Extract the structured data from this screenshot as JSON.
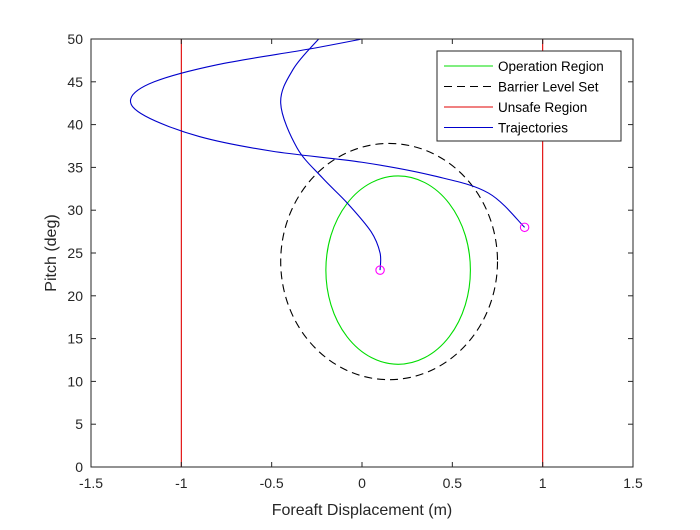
{
  "chart_data": {
    "type": "line",
    "xlabel": "Foreaft Displacement (m)",
    "ylabel": "Pitch (deg)",
    "xlim": [
      -1.5,
      1.5
    ],
    "ylim": [
      0,
      50
    ],
    "x_ticks": [
      -1.5,
      -1,
      -0.5,
      0,
      0.5,
      1,
      1.5
    ],
    "x_tick_labels": [
      "-1.5",
      "-1",
      "-0.5",
      "0",
      "0.5",
      "1",
      "1.5"
    ],
    "y_ticks": [
      0,
      5,
      10,
      15,
      20,
      25,
      30,
      35,
      40,
      45,
      50
    ],
    "y_tick_labels": [
      "0",
      "5",
      "10",
      "15",
      "20",
      "25",
      "30",
      "35",
      "40",
      "45",
      "50"
    ],
    "grid": false,
    "legend_position": "top-right",
    "series": [
      {
        "name": "Operation Region",
        "color": "#00dd00",
        "style": "solid",
        "shape": "ellipse",
        "center": [
          0.2,
          23
        ],
        "radii": [
          0.4,
          11
        ]
      },
      {
        "name": "Barrier Level Set",
        "color": "#000000",
        "style": "dashed",
        "shape": "ellipse",
        "center": [
          0.15,
          24
        ],
        "radii": [
          0.6,
          13.8
        ]
      },
      {
        "name": "Unsafe Region",
        "color": "#e00000",
        "style": "solid",
        "shape": "vertical-lines",
        "x_values": [
          -1,
          1
        ]
      },
      {
        "name": "Trajectories",
        "color": "#0000cc",
        "style": "solid",
        "trajectories": [
          {
            "points": [
              [
                0.9,
                28
              ],
              [
                0.7,
                32
              ],
              [
                0.4,
                34
              ],
              [
                0.0,
                35.6
              ],
              [
                -0.5,
                36.9
              ],
              [
                -0.9,
                38.6
              ],
              [
                -1.2,
                41
              ],
              [
                -1.28,
                43
              ],
              [
                -1.15,
                45
              ],
              [
                -0.8,
                47
              ],
              [
                -0.3,
                48.8
              ],
              [
                0.0,
                50
              ]
            ]
          },
          {
            "points": [
              [
                0.1,
                23
              ],
              [
                0.1,
                25
              ],
              [
                0.05,
                27.5
              ],
              [
                -0.08,
                30.8
              ],
              [
                -0.22,
                33.8
              ],
              [
                -0.36,
                37.3
              ],
              [
                -0.45,
                42.5
              ],
              [
                -0.38,
                46.5
              ],
              [
                -0.24,
                50
              ]
            ]
          }
        ],
        "start_markers": [
          [
            0.9,
            28
          ],
          [
            0.1,
            23
          ]
        ],
        "marker_color": "#ff00ff"
      }
    ]
  }
}
